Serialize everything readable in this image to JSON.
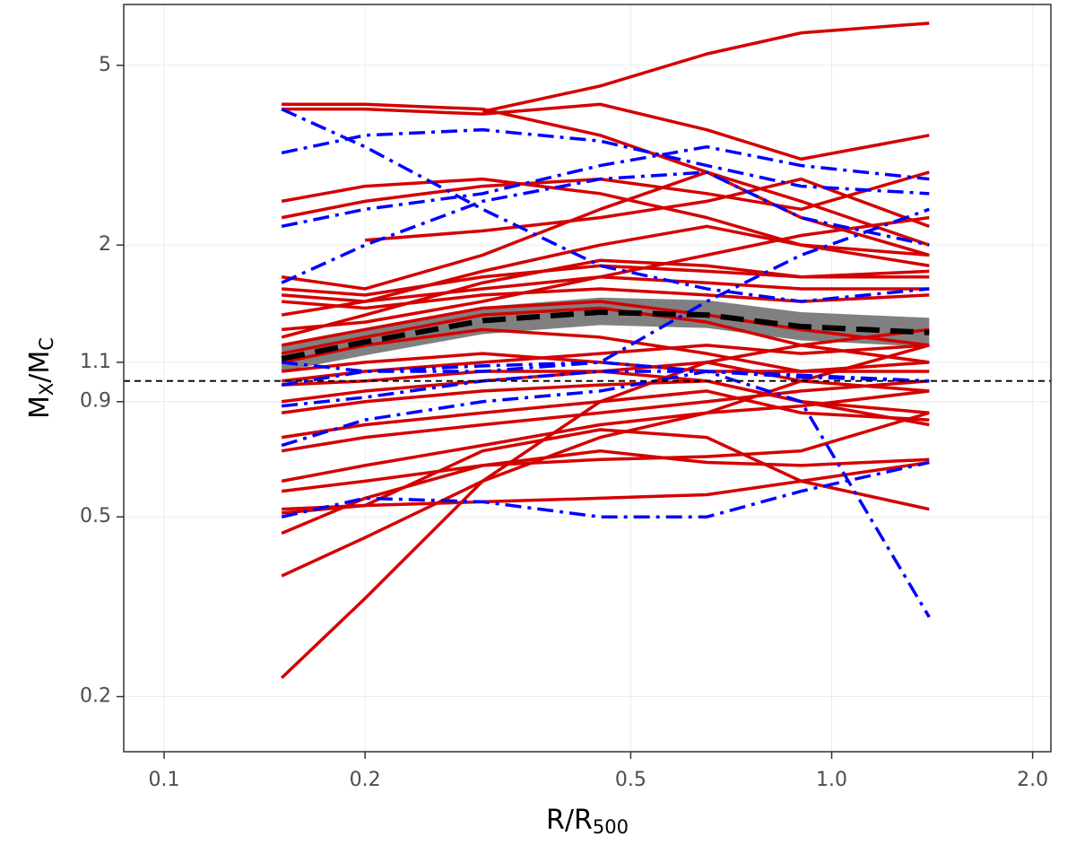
{
  "chart_data": {
    "type": "line",
    "xscale": "log",
    "yscale": "log",
    "xlim": [
      0.087,
      2.13
    ],
    "ylim": [
      0.151,
      6.82
    ],
    "xticks": [
      0.1,
      0.2,
      0.5,
      {
        "value": 1,
        "label": "1.0"
      },
      {
        "value": 2,
        "label": "2.0"
      }
    ],
    "yticks": [
      0.2,
      0.5,
      0.9,
      1.1,
      2,
      5
    ],
    "grid": true,
    "xlabel": [
      {
        "text": "R/R"
      },
      {
        "text": "500",
        "sub": true
      }
    ],
    "ylabel": [
      {
        "text": "M"
      },
      {
        "text": "X",
        "sub": true
      },
      {
        "text": "/M"
      },
      {
        "text": "C",
        "sub": true
      }
    ],
    "hline": 1,
    "x": [
      0.15,
      0.2,
      0.3,
      0.45,
      0.65,
      0.9,
      1.4
    ],
    "band": {
      "color": "#808080",
      "lower": [
        1.05,
        1.14,
        1.27,
        1.33,
        1.31,
        1.23,
        1.19
      ],
      "upper": [
        1.2,
        1.31,
        1.46,
        1.53,
        1.51,
        1.42,
        1.38
      ]
    },
    "series": [
      {
        "color": "#d40000",
        "linestyle": "solid",
        "values": [
          null,
          null,
          3.95,
          4.5,
          5.3,
          5.9,
          6.2
        ]
      },
      {
        "color": "#d40000",
        "linestyle": "solid",
        "values": [
          4.1,
          4.1,
          4.0,
          3.5,
          2.9,
          2.3,
          1.9
        ]
      },
      {
        "color": "#d40000",
        "linestyle": "solid",
        "values": [
          4.0,
          4.0,
          3.9,
          4.1,
          3.6,
          3.1,
          3.5
        ]
      },
      {
        "color": "#d40000",
        "linestyle": "solid",
        "values": [
          2.5,
          2.7,
          2.8,
          2.6,
          2.3,
          2.0,
          1.8
        ]
      },
      {
        "color": "#d40000",
        "linestyle": "solid",
        "values": [
          2.3,
          2.5,
          2.7,
          2.8,
          2.6,
          2.4,
          2.9
        ]
      },
      {
        "color": "#d40000",
        "linestyle": "solid",
        "values": [
          null,
          2.05,
          2.15,
          2.3,
          2.5,
          2.8,
          2.2
        ]
      },
      {
        "color": "#d40000",
        "linestyle": "solid",
        "values": [
          1.7,
          1.6,
          1.9,
          2.4,
          2.9,
          2.5,
          2.0
        ]
      },
      {
        "color": "#d40000",
        "linestyle": "solid",
        "values": [
          1.6,
          1.55,
          1.7,
          1.8,
          1.75,
          1.7,
          1.75
        ]
      },
      {
        "color": "#d40000",
        "linestyle": "solid",
        "values": [
          1.55,
          1.5,
          1.6,
          1.7,
          1.65,
          1.6,
          1.6
        ]
      },
      {
        "color": "#d40000",
        "linestyle": "solid",
        "values": [
          1.5,
          1.45,
          1.55,
          1.6,
          1.55,
          1.5,
          1.55
        ]
      },
      {
        "color": "#d40000",
        "linestyle": "solid",
        "values": [
          1.25,
          1.4,
          1.65,
          1.85,
          1.8,
          1.7,
          1.7
        ]
      },
      {
        "color": "#d40000",
        "linestyle": "solid",
        "values": [
          1.2,
          1.3,
          1.45,
          1.5,
          1.4,
          1.3,
          1.2
        ]
      },
      {
        "color": "#d40000",
        "linestyle": "solid",
        "values": [
          1.15,
          1.25,
          1.4,
          1.45,
          1.35,
          1.2,
          1.1
        ]
      },
      {
        "color": "#d40000",
        "linestyle": "solid",
        "values": [
          1.1,
          1.2,
          1.3,
          1.25,
          1.15,
          1.05,
          1.05
        ]
      },
      {
        "color": "#d40000",
        "linestyle": "solid",
        "values": [
          1.05,
          1.1,
          1.15,
          1.1,
          1.05,
          1.05,
          1.1
        ]
      },
      {
        "color": "#d40000",
        "linestyle": "solid",
        "values": [
          1.0,
          1.05,
          1.1,
          1.15,
          1.2,
          1.15,
          1.2
        ]
      },
      {
        "color": "#d40000",
        "linestyle": "solid",
        "values": [
          0.98,
          1.0,
          1.05,
          1.05,
          1.0,
          0.9,
          0.85
        ]
      },
      {
        "color": "#d40000",
        "linestyle": "solid",
        "values": [
          0.9,
          0.95,
          1.0,
          1.05,
          1.1,
          1.0,
          0.95
        ]
      },
      {
        "color": "#d40000",
        "linestyle": "solid",
        "values": [
          0.85,
          0.9,
          0.95,
          0.98,
          1.0,
          0.9,
          0.8
        ]
      },
      {
        "color": "#d40000",
        "linestyle": "solid",
        "values": [
          0.75,
          0.8,
          0.85,
          0.9,
          0.95,
          0.85,
          0.82
        ]
      },
      {
        "color": "#d40000",
        "linestyle": "solid",
        "values": [
          0.7,
          0.75,
          0.8,
          0.85,
          0.9,
          0.95,
          1.0
        ]
      },
      {
        "color": "#d40000",
        "linestyle": "solid",
        "values": [
          0.6,
          0.65,
          0.72,
          0.8,
          0.85,
          0.88,
          0.95
        ]
      },
      {
        "color": "#d40000",
        "linestyle": "solid",
        "values": [
          0.57,
          0.6,
          0.65,
          0.67,
          0.68,
          0.7,
          0.85
        ]
      },
      {
        "color": "#d40000",
        "linestyle": "solid",
        "values": [
          0.52,
          0.53,
          0.54,
          0.55,
          0.56,
          0.6,
          0.66
        ]
      },
      {
        "color": "#d40000",
        "linestyle": "solid",
        "values": [
          0.51,
          0.53,
          0.7,
          0.78,
          0.75,
          0.6,
          0.52
        ]
      },
      {
        "color": "#d40000",
        "linestyle": "solid",
        "values": [
          0.46,
          0.55,
          0.65,
          0.7,
          0.66,
          0.65,
          0.67
        ]
      },
      {
        "color": "#d40000",
        "linestyle": "solid",
        "values": [
          0.37,
          0.45,
          0.6,
          0.75,
          0.85,
          1.0,
          1.2
        ]
      },
      {
        "color": "#d40000",
        "linestyle": "solid",
        "values": [
          0.22,
          0.33,
          0.6,
          0.9,
          1.1,
          1.2,
          1.3
        ]
      },
      {
        "color": "#d40000",
        "linestyle": "solid",
        "values": [
          1.3,
          1.35,
          1.5,
          1.7,
          1.9,
          2.1,
          2.3
        ]
      },
      {
        "color": "#d40000",
        "linestyle": "solid",
        "values": [
          1.4,
          1.5,
          1.75,
          2.0,
          2.2,
          2.0,
          1.9
        ]
      },
      {
        "color": "#0000ff",
        "linestyle": "dashdot",
        "values": [
          4.0,
          3.3,
          2.4,
          1.8,
          1.6,
          1.5,
          1.6
        ]
      },
      {
        "color": "#0000ff",
        "linestyle": "dashdot",
        "values": [
          3.2,
          3.5,
          3.6,
          3.4,
          3.0,
          2.7,
          2.6
        ]
      },
      {
        "color": "#0000ff",
        "linestyle": "dashdot",
        "values": [
          2.2,
          2.4,
          2.6,
          3.0,
          3.3,
          3.0,
          2.8
        ]
      },
      {
        "color": "#0000ff",
        "linestyle": "dashdot",
        "values": [
          1.65,
          2.0,
          2.5,
          2.8,
          2.9,
          2.3,
          2.0
        ]
      },
      {
        "color": "#0000ff",
        "linestyle": "dashdot",
        "values": [
          1.1,
          1.05,
          1.05,
          1.1,
          1.5,
          1.9,
          2.4
        ]
      },
      {
        "color": "#0000ff",
        "linestyle": "dashdot",
        "values": [
          0.98,
          1.05,
          1.08,
          1.1,
          1.05,
          1.03,
          1.0
        ]
      },
      {
        "color": "#0000ff",
        "linestyle": "dashdot",
        "values": [
          0.88,
          0.92,
          1.0,
          1.05,
          1.05,
          1.02,
          1.0
        ]
      },
      {
        "color": "#0000ff",
        "linestyle": "dashdot",
        "values": [
          0.72,
          0.82,
          0.9,
          0.95,
          1.05,
          0.9,
          0.3
        ]
      },
      {
        "color": "#0000ff",
        "linestyle": "dashdot",
        "values": [
          0.5,
          0.55,
          0.54,
          0.5,
          0.5,
          0.57,
          0.66
        ]
      },
      {
        "color": "#000000",
        "linestyle": "dashed",
        "width": 6,
        "values": [
          1.12,
          1.22,
          1.36,
          1.42,
          1.4,
          1.32,
          1.28
        ]
      }
    ]
  }
}
